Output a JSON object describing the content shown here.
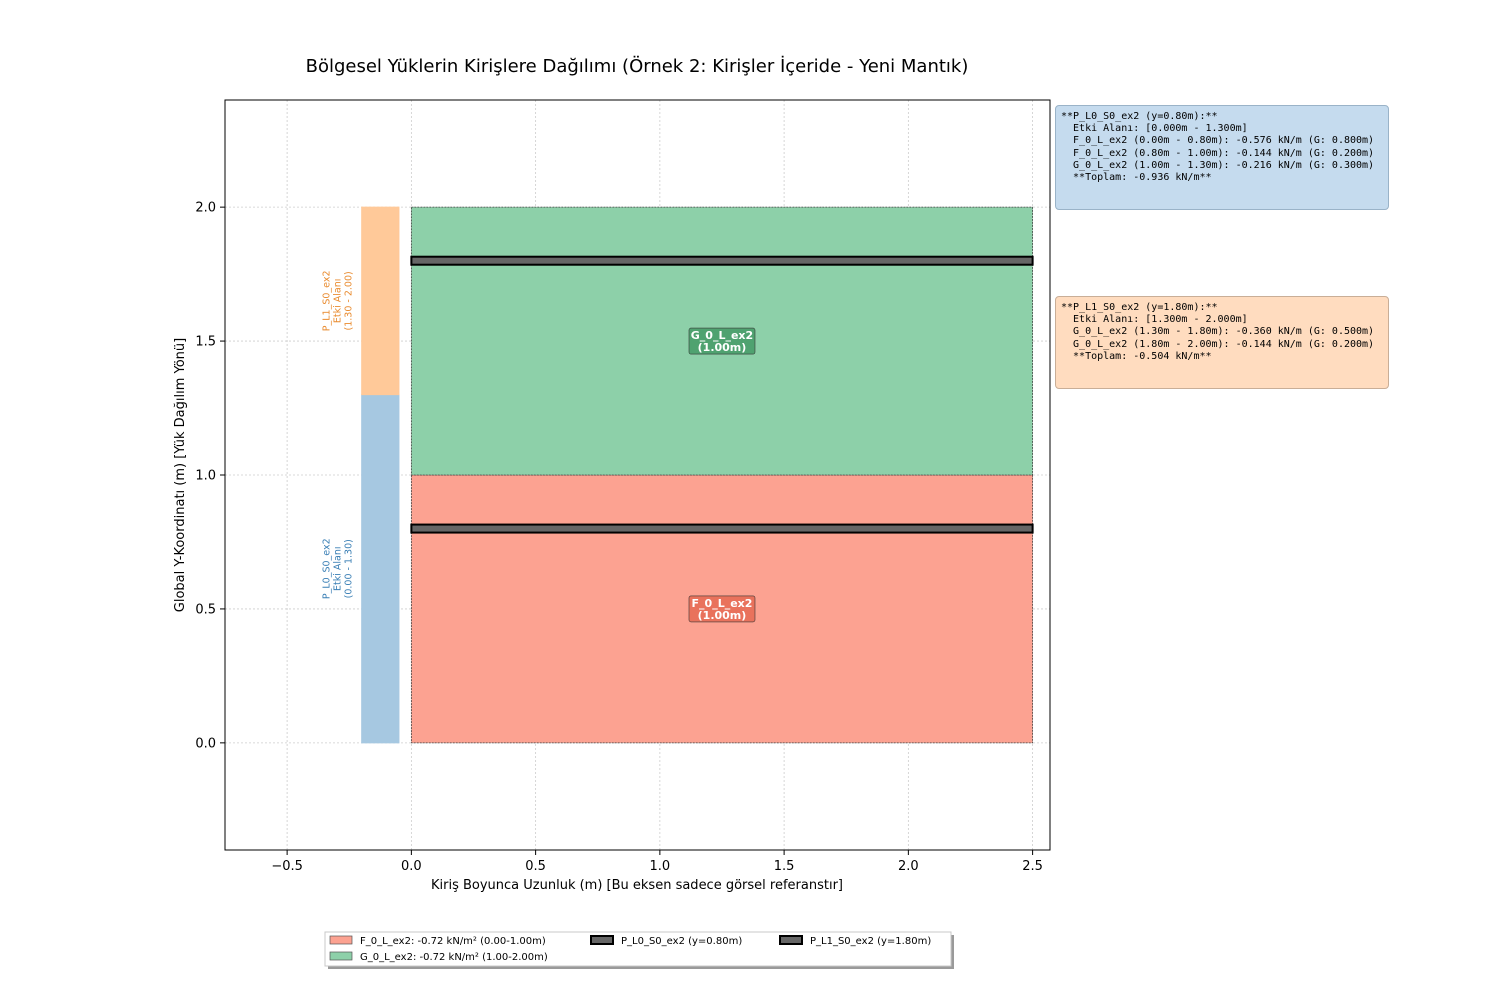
{
  "chart_data": {
    "type": "area",
    "title": "Bölgesel Yüklerin Kirişlere Dağılımı (Örnek 2: Kirişler İçeride - Yeni Mantık)",
    "xlabel": "Kiriş Boyunca Uzunluk (m) [Bu eksen sadece görsel referanstır]",
    "ylabel": "Global Y-Koordinatı (m) [Yük Dağılım Yönü]",
    "xlim": [
      -0.75,
      2.57
    ],
    "ylim": [
      -0.4,
      2.4
    ],
    "grid": true,
    "xticks": [
      -0.5,
      0.0,
      0.5,
      1.0,
      1.5,
      2.0,
      2.5
    ],
    "xtick_labels": [
      "−0.5",
      "0.0",
      "0.5",
      "1.0",
      "1.5",
      "2.0",
      "2.5"
    ],
    "yticks": [
      0.0,
      0.5,
      1.0,
      1.5,
      2.0
    ],
    "ytick_labels": [
      "0.0",
      "0.5",
      "1.0",
      "1.5",
      "2.0"
    ],
    "regions": [
      {
        "name": "F_0_L_ex2",
        "label_line1": "F_0_L_ex2",
        "label_line2": "(1.00m)",
        "x_range": [
          0.0,
          2.5
        ],
        "y_range": [
          0.0,
          1.0
        ],
        "label_at": [
          1.25,
          0.5
        ],
        "fill": "#fca291",
        "label_bg": "#e8705a"
      },
      {
        "name": "G_0_L_ex2",
        "label_line1": "G_0_L_ex2",
        "label_line2": "(1.00m)",
        "x_range": [
          0.0,
          2.5
        ],
        "y_range": [
          1.0,
          2.0
        ],
        "label_at": [
          1.25,
          1.5
        ],
        "fill": "#8dd0a9",
        "label_bg": "#4ca06e"
      }
    ],
    "beams": [
      {
        "name": "P_L0_S0_ex2",
        "y": 0.8,
        "x_range": [
          0.0,
          2.5
        ]
      },
      {
        "name": "P_L1_S0_ex2",
        "y": 1.8,
        "x_range": [
          0.0,
          2.5
        ]
      }
    ],
    "influence_areas": [
      {
        "beam": "P_L0_S0_ex2",
        "y_range": [
          0.0,
          1.3
        ],
        "x_range": [
          -0.2,
          -0.05
        ],
        "fill": "#a6c8e1",
        "text_color": "#3a7fb5",
        "label_lines": [
          "P_L0_S0_ex2",
          "Etki Alanı",
          "(0.00 - 1.30)"
        ]
      },
      {
        "beam": "P_L1_S0_ex2",
        "y_range": [
          1.3,
          2.0
        ],
        "x_range": [
          -0.2,
          -0.05
        ],
        "fill": "#ffc999",
        "text_color": "#e98b2f",
        "label_lines": [
          "P_L1_S0_ex2",
          "Etki Alanı",
          "(1.30 - 2.00)"
        ]
      }
    ],
    "legend": {
      "placement": "bottom-center",
      "entries": [
        {
          "label": "F_0_L_ex2: -0.72 kN/m² (0.00-1.00m)",
          "swatch": "#fca291",
          "kind": "patch"
        },
        {
          "label": "P_L0_S0_ex2 (y=0.80m)",
          "swatch": "#666666",
          "kind": "beam"
        },
        {
          "label": "P_L1_S0_ex2 (y=1.80m)",
          "swatch": "#666666",
          "kind": "beam"
        },
        {
          "label": "G_0_L_ex2: -0.72 kN/m² (1.00-2.00m)",
          "swatch": "#8dd0a9",
          "kind": "patch"
        }
      ]
    }
  },
  "info_boxes": [
    {
      "lines": [
        "**P_L0_S0_ex2 (y=0.80m):**",
        "  Etki Alanı: [0.000m - 1.300m]",
        "  F_0_L_ex2 (0.00m - 0.80m): -0.576 kN/m (G: 0.800m)",
        "  F_0_L_ex2 (0.80m - 1.00m): -0.144 kN/m (G: 0.200m)",
        "  G_0_L_ex2 (1.00m - 1.30m): -0.216 kN/m (G: 0.300m)",
        "  **Toplam: -0.936 kN/m**"
      ]
    },
    {
      "lines": [
        "**P_L1_S0_ex2 (y=1.80m):**",
        "  Etki Alanı: [1.300m - 2.000m]",
        "  G_0_L_ex2 (1.30m - 1.80m): -0.360 kN/m (G: 0.500m)",
        "  G_0_L_ex2 (1.80m - 2.00m): -0.144 kN/m (G: 0.200m)",
        "  **Toplam: -0.504 kN/m**"
      ]
    }
  ]
}
